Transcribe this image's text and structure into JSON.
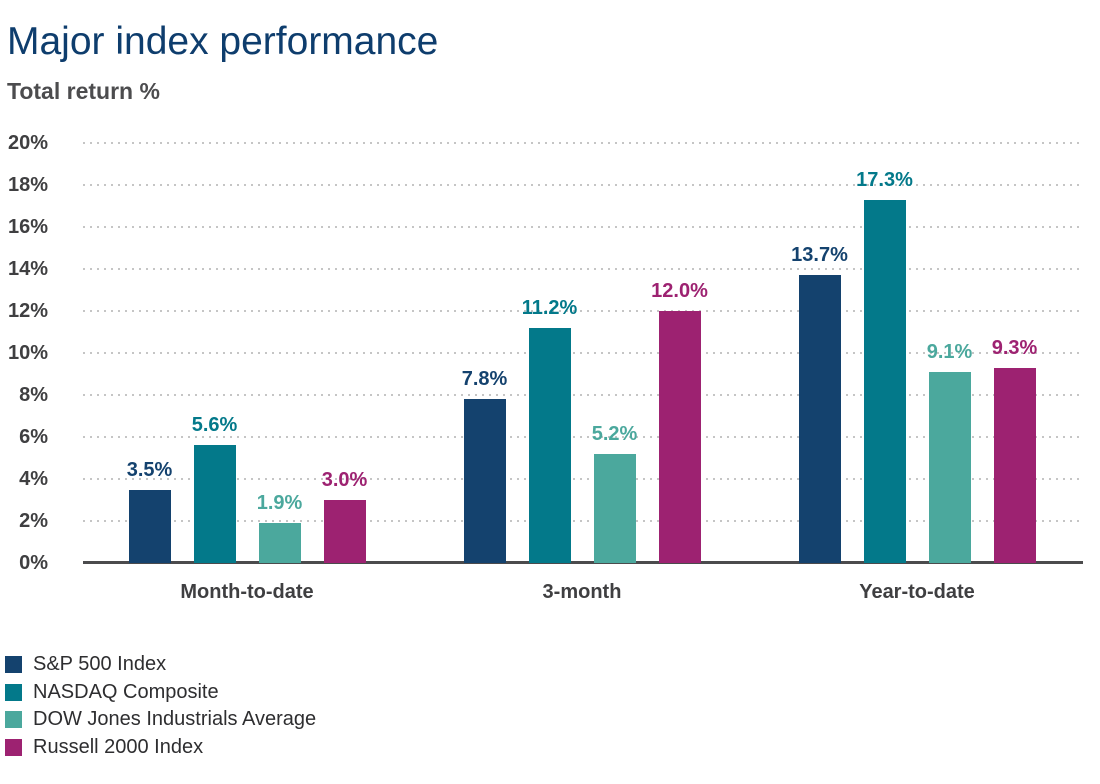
{
  "header": {
    "title": "Major index performance",
    "subtitle": "Total return %"
  },
  "chart_data": {
    "type": "bar",
    "title": "Major index performance",
    "ylabel": "Total return %",
    "xlabel": "",
    "categories": [
      "Month-to-date",
      "3-month",
      "Year-to-date"
    ],
    "series": [
      {
        "name": "S&P 500 Index",
        "color": "#14426E",
        "values": [
          3.5,
          7.8,
          13.7
        ],
        "labels": [
          "3.5%",
          "7.8%",
          "13.7%"
        ]
      },
      {
        "name": "NASDAQ Composite",
        "color": "#03798A",
        "values": [
          5.6,
          11.2,
          17.3
        ],
        "labels": [
          "5.6%",
          "11.2%",
          "17.3%"
        ]
      },
      {
        "name": "DOW Jones Industrials Average",
        "color": "#4BA89D",
        "values": [
          1.9,
          5.2,
          9.1
        ],
        "labels": [
          "1.9%",
          "5.2%",
          "9.1%"
        ]
      },
      {
        "name": "Russell 2000 Index",
        "color": "#9D2271",
        "values": [
          3.0,
          12.0,
          9.3
        ],
        "labels": [
          "3.0%",
          "12.0%",
          "9.3%"
        ]
      }
    ],
    "ylim": [
      0,
      20
    ],
    "yticks": [
      0,
      2,
      4,
      6,
      8,
      10,
      12,
      14,
      16,
      18,
      20
    ],
    "ytick_labels": [
      "0%",
      "2%",
      "4%",
      "6%",
      "8%",
      "10%",
      "12%",
      "14%",
      "16%",
      "18%",
      "20%"
    ],
    "grid": "horizontal-dotted",
    "legend_position": "bottom-left",
    "colors": {
      "title": "#0E3D6D",
      "subtitle": "#4C4C4E",
      "axis_text": "#3F3F41",
      "gridline": "#C5C5C5",
      "axis_line": "#4B4B4D",
      "legend_text": "#2E2E30"
    }
  }
}
